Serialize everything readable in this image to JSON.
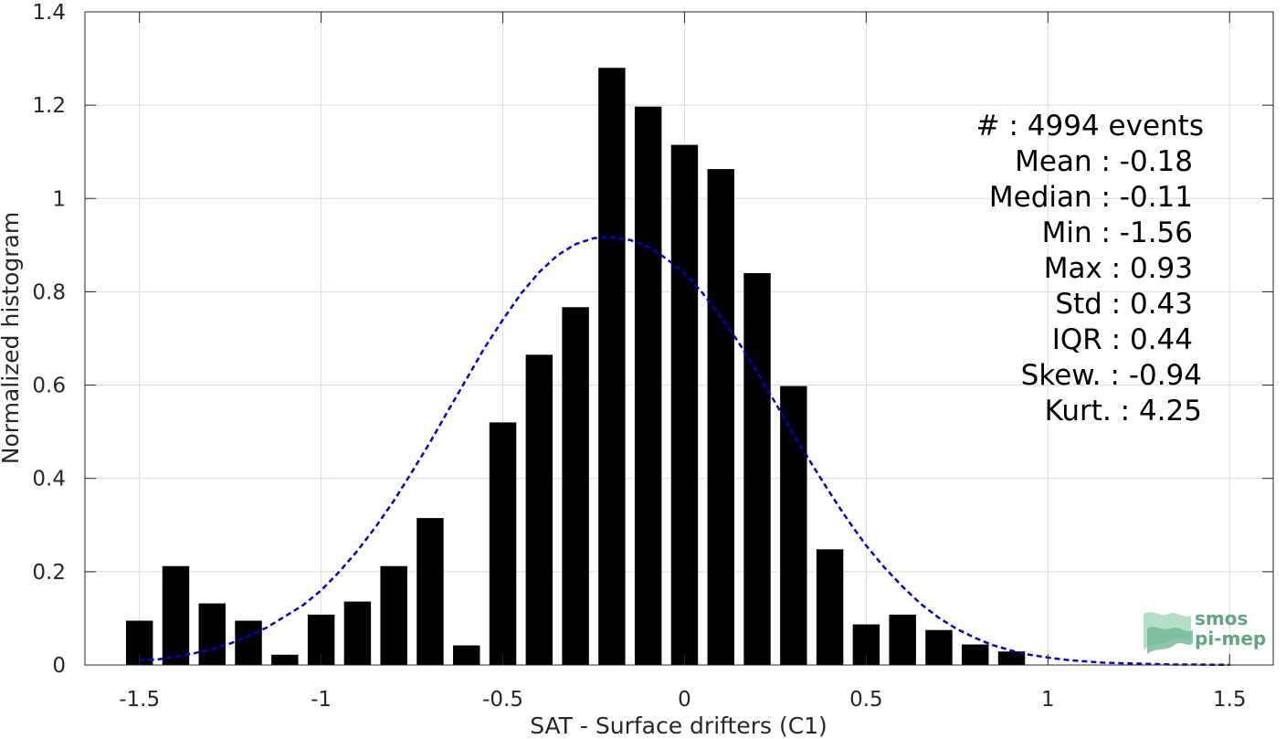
{
  "chart_data": {
    "type": "bar",
    "xlabel": "SAT - Surface drifters (C1)",
    "ylabel": "Normalized histogram",
    "xlim": [
      -1.65,
      1.62
    ],
    "ylim": [
      0,
      1.4
    ],
    "xticks": [
      -1.5,
      -1,
      -0.5,
      0,
      0.5,
      1,
      1.5
    ],
    "xtick_labels": [
      "-1.5",
      "-1",
      "-0.5",
      "0",
      "0.5",
      "1",
      "1.5"
    ],
    "yticks": [
      0,
      0.2,
      0.4,
      0.6,
      0.8,
      1,
      1.2,
      1.4
    ],
    "ytick_labels": [
      "0",
      "0.2",
      "0.4",
      "0.6",
      "0.8",
      "1",
      "1.2",
      "1.4"
    ],
    "grid": true,
    "bar_width": 0.074,
    "bar_color": "#000000",
    "bars": {
      "x": [
        -1.5,
        -1.4,
        -1.3,
        -1.2,
        -1.1,
        -1.0,
        -0.9,
        -0.8,
        -0.7,
        -0.6,
        -0.5,
        -0.4,
        -0.3,
        -0.2,
        -0.1,
        0.0,
        0.1,
        0.2,
        0.3,
        0.4,
        0.5,
        0.6,
        0.7,
        0.8,
        0.9
      ],
      "y": [
        0.095,
        0.212,
        0.132,
        0.095,
        0.022,
        0.108,
        0.136,
        0.212,
        0.315,
        0.042,
        0.52,
        0.665,
        0.767,
        1.28,
        1.197,
        1.115,
        1.063,
        0.84,
        0.598,
        0.248,
        0.087,
        0.108,
        0.075,
        0.044,
        0.029
      ]
    },
    "fit_curve": {
      "style": "dashed",
      "color": "#0000cc",
      "x": [
        -1.5,
        -1.45,
        -1.4,
        -1.35,
        -1.3,
        -1.25,
        -1.2,
        -1.15,
        -1.1,
        -1.05,
        -1.0,
        -0.95,
        -0.9,
        -0.85,
        -0.8,
        -0.75,
        -0.7,
        -0.65,
        -0.6,
        -0.55,
        -0.5,
        -0.45,
        -0.4,
        -0.35,
        -0.3,
        -0.25,
        -0.2,
        -0.15,
        -0.1,
        -0.05,
        0.0,
        0.05,
        0.1,
        0.15,
        0.2,
        0.25,
        0.3,
        0.35,
        0.4,
        0.45,
        0.5,
        0.55,
        0.6,
        0.65,
        0.7,
        0.75,
        0.8,
        0.85,
        0.9,
        0.95,
        1.0,
        1.05,
        1.1,
        1.15,
        1.2,
        1.25,
        1.3,
        1.35,
        1.4,
        1.45,
        1.5
      ],
      "y": [
        0.01,
        0.012,
        0.018,
        0.025,
        0.034,
        0.046,
        0.062,
        0.08,
        0.104,
        0.128,
        0.16,
        0.2,
        0.245,
        0.296,
        0.352,
        0.414,
        0.478,
        0.546,
        0.613,
        0.68,
        0.74,
        0.796,
        0.842,
        0.878,
        0.902,
        0.915,
        0.917,
        0.911,
        0.896,
        0.871,
        0.84,
        0.797,
        0.747,
        0.69,
        0.628,
        0.562,
        0.495,
        0.431,
        0.369,
        0.31,
        0.256,
        0.209,
        0.168,
        0.131,
        0.101,
        0.077,
        0.058,
        0.042,
        0.031,
        0.022,
        0.016,
        0.011,
        0.008,
        0.005,
        0.004,
        0.003,
        0.002,
        0.001,
        0.001,
        0.0005,
        0.0004
      ]
    },
    "annotations": [
      "#  : 4994 events",
      "Mean : -0.18",
      "Median : -0.11",
      "Min : -1.56",
      "Max : 0.93",
      "Std : 0.43",
      "IQR : 0.44",
      "Skew. : -0.94",
      "Kurt. : 4.25"
    ]
  },
  "logo": {
    "line1": "smos",
    "line2": "pi-mep",
    "color": "#5fa680"
  }
}
